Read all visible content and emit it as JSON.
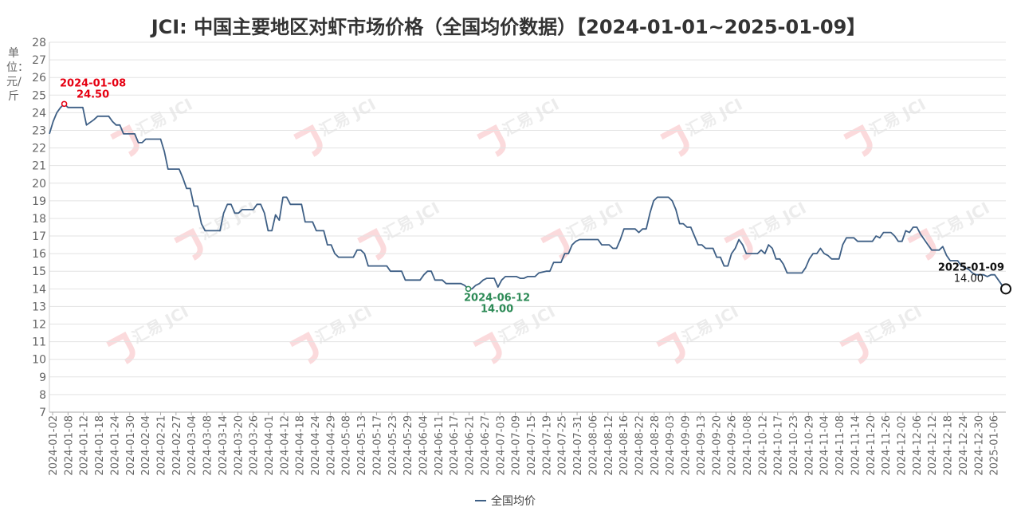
{
  "title": "JCI: 中国主要地区对虾市场价格（全国均价数据）【2024-01-01~2025-01-09】",
  "unit_label": "单位：元/斤",
  "watermark": "汇易 JCI",
  "chart_data": {
    "type": "line",
    "title": "JCI: 中国主要地区对虾市场价格（全国均价数据）【2024-01-01~2025-01-09】",
    "ylabel": "单位：元/斤",
    "ylim": [
      7,
      28
    ],
    "yticks": [
      "7",
      "8",
      "9",
      "10",
      "11",
      "12",
      "13",
      "14",
      "15",
      "16",
      "17",
      "18",
      "19",
      "20",
      "21",
      "22",
      "23",
      "24",
      "25",
      "26",
      "27",
      "28"
    ],
    "grid": true,
    "legend_position": "bottom-center",
    "x_ticks": [
      "2024-01-02",
      "2024-01-08",
      "2024-01-12",
      "2024-01-18",
      "2024-01-24",
      "2024-01-30",
      "2024-02-04",
      "2024-02-21",
      "2024-02-27",
      "2024-03-04",
      "2024-03-08",
      "2024-03-14",
      "2024-03-20",
      "2024-03-26",
      "2024-04-01",
      "2024-04-12",
      "2024-04-18",
      "2024-04-24",
      "2024-04-29",
      "2024-05-08",
      "2024-05-13",
      "2024-05-17",
      "2024-05-23",
      "2024-05-29",
      "2024-06-04",
      "2024-06-11",
      "2024-06-17",
      "2024-06-21",
      "2024-06-27",
      "2024-07-03",
      "2024-07-09",
      "2024-07-15",
      "2024-07-19",
      "2024-07-25",
      "2024-07-31",
      "2024-08-06",
      "2024-08-12",
      "2024-08-16",
      "2024-08-22",
      "2024-08-28",
      "2024-09-03",
      "2024-09-09",
      "2024-09-13",
      "2024-09-20",
      "2024-09-26",
      "2024-10-08",
      "2024-10-12",
      "2024-10-17",
      "2024-10-23",
      "2024-10-29",
      "2024-11-04",
      "2024-11-08",
      "2024-11-14",
      "2024-11-20",
      "2024-11-26",
      "2024-12-02",
      "2024-12-06",
      "2024-12-12",
      "2024-12-18",
      "2024-12-24",
      "2024-12-30",
      "2025-01-06"
    ],
    "series": [
      {
        "name": "全国均价",
        "color": "#3e5f85",
        "points": [
          [
            0,
            22.8
          ],
          [
            1,
            23.5
          ],
          [
            2,
            24.0
          ],
          [
            3,
            24.3
          ],
          [
            4,
            24.5
          ],
          [
            5,
            24.3
          ],
          [
            9,
            24.3
          ],
          [
            10,
            23.3
          ],
          [
            12,
            23.6
          ],
          [
            13,
            23.8
          ],
          [
            16,
            23.8
          ],
          [
            17,
            23.5
          ],
          [
            18,
            23.3
          ],
          [
            19,
            23.3
          ],
          [
            20,
            22.8
          ],
          [
            23,
            22.8
          ],
          [
            24,
            22.3
          ],
          [
            25,
            22.3
          ],
          [
            26,
            22.5
          ],
          [
            30,
            22.5
          ],
          [
            31,
            21.8
          ],
          [
            32,
            20.8
          ],
          [
            35,
            20.8
          ],
          [
            36,
            20.3
          ],
          [
            37,
            19.7
          ],
          [
            38,
            19.7
          ],
          [
            39,
            18.7
          ],
          [
            40,
            18.7
          ],
          [
            41,
            17.7
          ],
          [
            42,
            17.3
          ],
          [
            46,
            17.3
          ],
          [
            47,
            18.3
          ],
          [
            48,
            18.8
          ],
          [
            49,
            18.8
          ],
          [
            50,
            18.3
          ],
          [
            51,
            18.3
          ],
          [
            52,
            18.5
          ],
          [
            55,
            18.5
          ],
          [
            56,
            18.8
          ],
          [
            57,
            18.8
          ],
          [
            58,
            18.3
          ],
          [
            59,
            17.3
          ],
          [
            60,
            17.3
          ],
          [
            61,
            18.2
          ],
          [
            62,
            17.9
          ],
          [
            63,
            19.2
          ],
          [
            64,
            19.2
          ],
          [
            65,
            18.8
          ],
          [
            68,
            18.8
          ],
          [
            69,
            17.8
          ],
          [
            71,
            17.8
          ],
          [
            72,
            17.3
          ],
          [
            74,
            17.3
          ],
          [
            75,
            16.5
          ],
          [
            76,
            16.5
          ],
          [
            77,
            16.0
          ],
          [
            78,
            15.8
          ],
          [
            82,
            15.8
          ],
          [
            83,
            16.2
          ],
          [
            84,
            16.2
          ],
          [
            85,
            16.0
          ],
          [
            86,
            15.3
          ],
          [
            91,
            15.3
          ],
          [
            92,
            15.0
          ],
          [
            95,
            15.0
          ],
          [
            96,
            14.5
          ],
          [
            100,
            14.5
          ],
          [
            101,
            14.8
          ],
          [
            102,
            15.0
          ],
          [
            103,
            15.0
          ],
          [
            104,
            14.5
          ],
          [
            106,
            14.5
          ],
          [
            107,
            14.3
          ],
          [
            111,
            14.3
          ],
          [
            112,
            14.2
          ],
          [
            113,
            14.0
          ],
          [
            114,
            14.0
          ],
          [
            115,
            14.2
          ],
          [
            116,
            14.3
          ],
          [
            117,
            14.5
          ],
          [
            118,
            14.6
          ],
          [
            120,
            14.6
          ],
          [
            121,
            14.1
          ],
          [
            122,
            14.5
          ],
          [
            123,
            14.7
          ],
          [
            126,
            14.7
          ],
          [
            127,
            14.6
          ],
          [
            128,
            14.6
          ],
          [
            129,
            14.7
          ],
          [
            131,
            14.7
          ],
          [
            132,
            14.9
          ],
          [
            134,
            15.0
          ],
          [
            135,
            15.0
          ],
          [
            136,
            15.5
          ],
          [
            138,
            15.5
          ],
          [
            139,
            16.0
          ],
          [
            140,
            16.0
          ],
          [
            141,
            16.5
          ],
          [
            142,
            16.7
          ],
          [
            143,
            16.8
          ],
          [
            148,
            16.8
          ],
          [
            149,
            16.5
          ],
          [
            151,
            16.5
          ],
          [
            152,
            16.3
          ],
          [
            153,
            16.3
          ],
          [
            154,
            16.8
          ],
          [
            155,
            17.4
          ],
          [
            158,
            17.4
          ],
          [
            159,
            17.2
          ],
          [
            160,
            17.4
          ],
          [
            161,
            17.4
          ],
          [
            162,
            18.3
          ],
          [
            163,
            19.0
          ],
          [
            164,
            19.2
          ],
          [
            167,
            19.2
          ],
          [
            168,
            19.0
          ],
          [
            169,
            18.5
          ],
          [
            170,
            17.7
          ],
          [
            171,
            17.7
          ],
          [
            172,
            17.5
          ],
          [
            173,
            17.5
          ],
          [
            174,
            17.0
          ],
          [
            175,
            16.5
          ],
          [
            176,
            16.5
          ],
          [
            177,
            16.3
          ],
          [
            179,
            16.3
          ],
          [
            180,
            15.8
          ],
          [
            181,
            15.8
          ],
          [
            182,
            15.3
          ],
          [
            183,
            15.3
          ],
          [
            184,
            16.0
          ],
          [
            185,
            16.3
          ],
          [
            186,
            16.8
          ],
          [
            187,
            16.5
          ],
          [
            188,
            16.0
          ],
          [
            191,
            16.0
          ],
          [
            192,
            16.2
          ],
          [
            193,
            16.0
          ],
          [
            194,
            16.5
          ],
          [
            195,
            16.3
          ],
          [
            196,
            15.7
          ],
          [
            197,
            15.7
          ],
          [
            198,
            15.4
          ],
          [
            199,
            14.9
          ],
          [
            203,
            14.9
          ],
          [
            204,
            15.2
          ],
          [
            205,
            15.7
          ],
          [
            206,
            16.0
          ],
          [
            207,
            16.0
          ],
          [
            208,
            16.3
          ],
          [
            209,
            16.0
          ],
          [
            210,
            15.9
          ],
          [
            211,
            15.7
          ],
          [
            213,
            15.7
          ],
          [
            214,
            16.5
          ],
          [
            215,
            16.9
          ],
          [
            217,
            16.9
          ],
          [
            218,
            16.7
          ],
          [
            222,
            16.7
          ],
          [
            223,
            17.0
          ],
          [
            224,
            16.9
          ],
          [
            225,
            17.2
          ],
          [
            227,
            17.2
          ],
          [
            228,
            17.0
          ],
          [
            229,
            16.7
          ],
          [
            230,
            16.7
          ],
          [
            231,
            17.3
          ],
          [
            232,
            17.2
          ],
          [
            233,
            17.5
          ],
          [
            234,
            17.5
          ],
          [
            235,
            17.1
          ],
          [
            236,
            16.8
          ],
          [
            237,
            16.5
          ],
          [
            238,
            16.2
          ],
          [
            240,
            16.2
          ],
          [
            241,
            16.4
          ],
          [
            242,
            15.9
          ],
          [
            243,
            15.6
          ],
          [
            245,
            15.6
          ],
          [
            246,
            15.3
          ],
          [
            247,
            15.2
          ],
          [
            248,
            15.1
          ],
          [
            249,
            14.9
          ],
          [
            250,
            14.8
          ],
          [
            252,
            14.8
          ],
          [
            253,
            14.7
          ],
          [
            254,
            14.8
          ],
          [
            255,
            14.8
          ],
          [
            256,
            14.5
          ],
          [
            257,
            14.2
          ],
          [
            258,
            14.0
          ]
        ]
      }
    ],
    "annotations": [
      {
        "date": "2024-01-08",
        "value": "24.50",
        "type": "max",
        "color": "#e60012"
      },
      {
        "date": "2024-06-12",
        "value": "14.00",
        "type": "min",
        "color": "#2e8b57"
      },
      {
        "date": "2025-01-09",
        "value": "14.00",
        "type": "last",
        "color": "#111111"
      }
    ]
  },
  "legend": {
    "label": "全国均价"
  }
}
